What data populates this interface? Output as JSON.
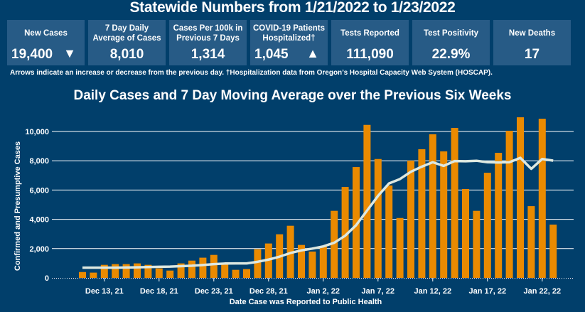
{
  "header": {
    "title": "Statewide Numbers from 1/21/2022 to 1/23/2022"
  },
  "cards": [
    {
      "label": "New Cases",
      "value": "19,400",
      "arrow": "▼",
      "arrow_icon": "down-triangle-icon"
    },
    {
      "label": "7 Day Daily Average of Cases",
      "value": "8,010"
    },
    {
      "label": "Cases Per 100k in Previous 7 Days",
      "value": "1,314"
    },
    {
      "label": "COVID-19 Patients Hospitalized†",
      "value": "1,045",
      "arrow": "▲",
      "arrow_icon": "up-triangle-icon"
    },
    {
      "label": "Tests Reported",
      "value": "111,090"
    },
    {
      "label": "Test Positivity",
      "value": "22.9%"
    },
    {
      "label": "New Deaths",
      "value": "17"
    }
  ],
  "note": "Arrows indicate an increase or decrease from the previous day. †Hospitalization data from Oregon’s Hospital Capacity Web System (HOSCAP).",
  "colors": {
    "background": "#013f6b",
    "card": "#275b86",
    "bar": "#ea8a00",
    "line": "#dde8e0"
  },
  "chart_data": {
    "type": "bar",
    "title": "Daily Cases and 7 Day Moving Average over the Previous Six Weeks",
    "xlabel": "Date Case was Reported to Public Health",
    "ylabel": "Confirmed and Presumptive Cases",
    "ylim": [
      0,
      10000
    ],
    "yticks": [
      "0",
      "2,000",
      "4,000",
      "6,000",
      "8,000",
      "10,000"
    ],
    "ytick_values": [
      0,
      2000,
      4000,
      6000,
      8000,
      10000
    ],
    "grid": true,
    "xticks": [
      {
        "index": 2,
        "label": "Dec 13, 21"
      },
      {
        "index": 7,
        "label": "Dec 18, 21"
      },
      {
        "index": 12,
        "label": "Dec 23, 21"
      },
      {
        "index": 17,
        "label": "Dec 28, 21"
      },
      {
        "index": 22,
        "label": "Jan 2, 22"
      },
      {
        "index": 27,
        "label": "Jan 7, 22"
      },
      {
        "index": 32,
        "label": "Jan 12, 22"
      },
      {
        "index": 37,
        "label": "Jan 17, 22"
      },
      {
        "index": 42,
        "label": "Jan 22, 22"
      }
    ],
    "categories": [
      "2021-12-11",
      "2021-12-12",
      "2021-12-13",
      "2021-12-14",
      "2021-12-15",
      "2021-12-16",
      "2021-12-17",
      "2021-12-18",
      "2021-12-19",
      "2021-12-20",
      "2021-12-21",
      "2021-12-22",
      "2021-12-23",
      "2021-12-24",
      "2021-12-25",
      "2021-12-26",
      "2021-12-27",
      "2021-12-28",
      "2021-12-29",
      "2021-12-30",
      "2021-12-31",
      "2022-01-01",
      "2022-01-02",
      "2022-01-03",
      "2022-01-04",
      "2022-01-05",
      "2022-01-06",
      "2022-01-07",
      "2022-01-08",
      "2022-01-09",
      "2022-01-10",
      "2022-01-11",
      "2022-01-12",
      "2022-01-13",
      "2022-01-14",
      "2022-01-15",
      "2022-01-16",
      "2022-01-17",
      "2022-01-18",
      "2022-01-19",
      "2022-01-20",
      "2022-01-21",
      "2022-01-22",
      "2022-01-23"
    ],
    "series": [
      {
        "type": "bar",
        "values": [
          400,
          360,
          890,
          940,
          940,
          990,
          890,
          650,
          500,
          990,
          1180,
          1380,
          1570,
          990,
          550,
          600,
          1960,
          2350,
          2980,
          3560,
          2250,
          1800,
          2140,
          4580,
          6210,
          7570,
          10450,
          8120,
          6310,
          4090,
          8010,
          8790,
          9810,
          8640,
          10240,
          6070,
          4580,
          7180,
          8540,
          10050,
          10970,
          4900,
          10870,
          3640
        ]
      },
      {
        "type": "line",
        "values": [
          700,
          700,
          700,
          700,
          710,
          720,
          740,
          760,
          770,
          800,
          830,
          880,
          940,
          980,
          990,
          990,
          1100,
          1250,
          1450,
          1700,
          1880,
          2000,
          2150,
          2400,
          2880,
          3600,
          4600,
          5600,
          6450,
          6750,
          7250,
          7600,
          7900,
          7650,
          7980,
          7970,
          8000,
          7900,
          7880,
          7900,
          8200,
          7450,
          8120,
          8010
        ]
      }
    ]
  }
}
